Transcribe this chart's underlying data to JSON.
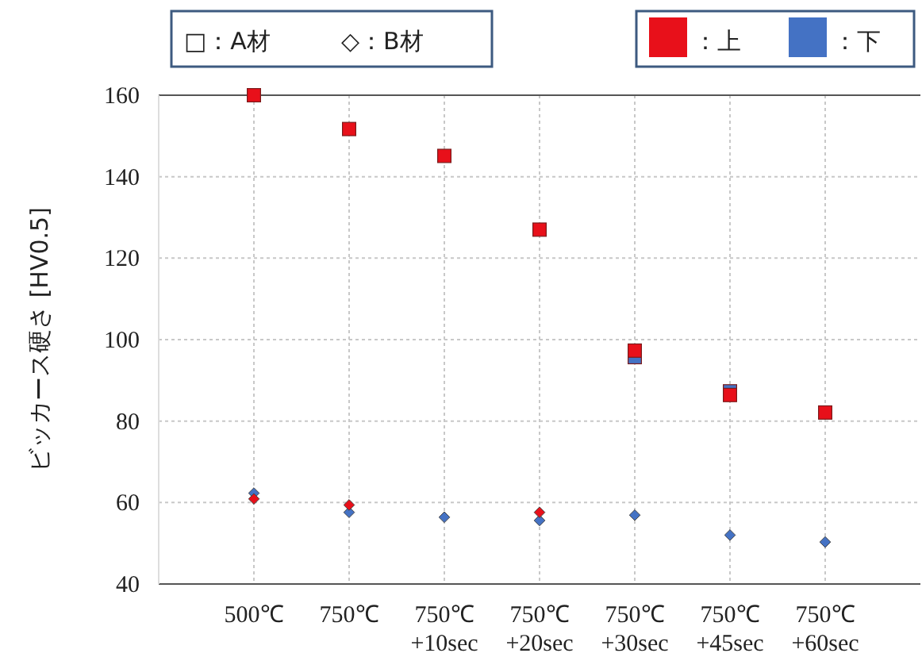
{
  "chart_data": {
    "type": "scatter",
    "ylabel": "ビッカース硬さ [HV0.5]",
    "categories": [
      "500℃",
      "750℃",
      "750℃\n+10sec",
      "750℃\n+20sec",
      "750℃\n+30sec",
      "750℃\n+45sec",
      "750℃\n+60sec"
    ],
    "series": [
      {
        "color": "#4472c4",
        "marker": "square",
        "values": [
          null,
          null,
          null,
          null,
          95.7,
          87.3,
          null
        ]
      },
      {
        "color": "#e8101a",
        "marker": "square",
        "values": [
          160,
          151.7,
          145.1,
          127.0,
          97.3,
          86.4,
          82.1
        ]
      },
      {
        "color": "#4472c4",
        "marker": "diamond",
        "values": [
          62.3,
          57.6,
          56.4,
          55.6,
          56.9,
          52.0,
          50.3
        ]
      },
      {
        "color": "#e8101a",
        "marker": "diamond",
        "values": [
          60.9,
          59.4,
          null,
          57.6,
          null,
          null,
          null
        ]
      }
    ],
    "ylim": [
      40,
      160
    ],
    "yticks": [
      40,
      60,
      80,
      100,
      120,
      140,
      160
    ],
    "grid": true,
    "annotations": [
      "□：A材",
      "◇：B材",
      "：上",
      "：下"
    ]
  }
}
